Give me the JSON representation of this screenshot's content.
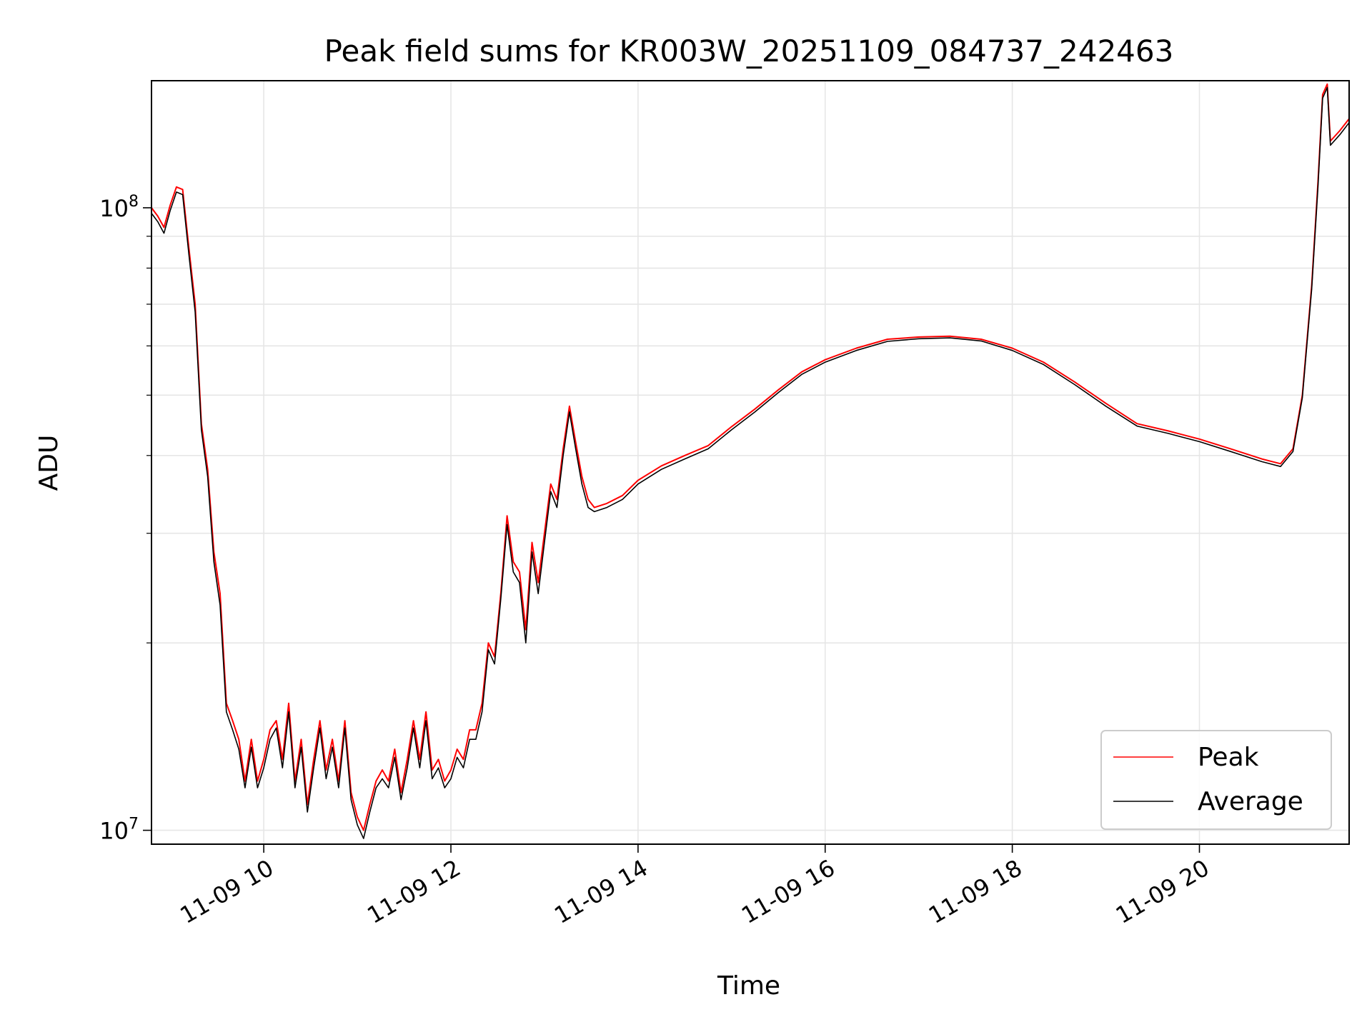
{
  "chart_data": {
    "type": "line",
    "title": "Peak field sums for KR003W_20251109_084737_242463",
    "xlabel": "Time",
    "ylabel": "ADU",
    "y_scale": "log",
    "grid": true,
    "legend_placement": "lower-right",
    "xlim": [
      "2025-11-09 08:48",
      "2025-11-09 21:36"
    ],
    "ylim": [
      9500000,
      160000000
    ],
    "x_ticks": [
      {
        "value": "2025-11-09 10:00",
        "label": "11-09 10"
      },
      {
        "value": "2025-11-09 12:00",
        "label": "11-09 12"
      },
      {
        "value": "2025-11-09 14:00",
        "label": "11-09 14"
      },
      {
        "value": "2025-11-09 16:00",
        "label": "11-09 16"
      },
      {
        "value": "2025-11-09 18:00",
        "label": "11-09 18"
      },
      {
        "value": "2025-11-09 20:00",
        "label": "11-09 20"
      }
    ],
    "y_major_ticks": [
      {
        "value": 10000000,
        "base": "10",
        "exp": "7"
      },
      {
        "value": 100000000,
        "base": "10",
        "exp": "8"
      }
    ],
    "y_minor_ticks": [
      20000000,
      30000000,
      40000000,
      50000000,
      60000000,
      70000000,
      80000000,
      90000000
    ],
    "series": [
      {
        "name": "Peak",
        "color": "#ff0000",
        "points": [
          [
            "2025-11-09 08:48",
            100000000
          ],
          [
            "2025-11-09 08:52",
            97000000
          ],
          [
            "2025-11-09 08:56",
            93000000
          ],
          [
            "2025-11-09 09:00",
            101000000
          ],
          [
            "2025-11-09 09:04",
            108000000
          ],
          [
            "2025-11-09 09:08",
            107000000
          ],
          [
            "2025-11-09 09:12",
            86000000
          ],
          [
            "2025-11-09 09:16",
            70000000
          ],
          [
            "2025-11-09 09:20",
            45000000
          ],
          [
            "2025-11-09 09:24",
            38000000
          ],
          [
            "2025-11-09 09:28",
            28000000
          ],
          [
            "2025-11-09 09:32",
            24000000
          ],
          [
            "2025-11-09 09:36",
            16000000
          ],
          [
            "2025-11-09 09:40",
            15000000
          ],
          [
            "2025-11-09 09:44",
            14000000
          ],
          [
            "2025-11-09 09:48",
            12000000
          ],
          [
            "2025-11-09 09:52",
            14000000
          ],
          [
            "2025-11-09 09:56",
            12000000
          ],
          [
            "2025-11-09 10:00",
            13000000
          ],
          [
            "2025-11-09 10:04",
            14500000
          ],
          [
            "2025-11-09 10:08",
            15000000
          ],
          [
            "2025-11-09 10:12",
            13000000
          ],
          [
            "2025-11-09 10:16",
            16000000
          ],
          [
            "2025-11-09 10:20",
            12000000
          ],
          [
            "2025-11-09 10:24",
            14000000
          ],
          [
            "2025-11-09 10:28",
            11000000
          ],
          [
            "2025-11-09 10:32",
            13000000
          ],
          [
            "2025-11-09 10:36",
            15000000
          ],
          [
            "2025-11-09 10:40",
            12500000
          ],
          [
            "2025-11-09 10:44",
            14000000
          ],
          [
            "2025-11-09 10:48",
            12000000
          ],
          [
            "2025-11-09 10:52",
            15000000
          ],
          [
            "2025-11-09 10:56",
            11500000
          ],
          [
            "2025-11-09 11:00",
            10500000
          ],
          [
            "2025-11-09 11:04",
            10000000
          ],
          [
            "2025-11-09 11:08",
            11000000
          ],
          [
            "2025-11-09 11:12",
            12000000
          ],
          [
            "2025-11-09 11:16",
            12500000
          ],
          [
            "2025-11-09 11:20",
            12000000
          ],
          [
            "2025-11-09 11:24",
            13500000
          ],
          [
            "2025-11-09 11:28",
            11500000
          ],
          [
            "2025-11-09 11:32",
            13000000
          ],
          [
            "2025-11-09 11:36",
            15000000
          ],
          [
            "2025-11-09 11:40",
            13000000
          ],
          [
            "2025-11-09 11:44",
            15500000
          ],
          [
            "2025-11-09 11:48",
            12500000
          ],
          [
            "2025-11-09 11:52",
            13000000
          ],
          [
            "2025-11-09 11:56",
            12000000
          ],
          [
            "2025-11-09 12:00",
            12500000
          ],
          [
            "2025-11-09 12:04",
            13500000
          ],
          [
            "2025-11-09 12:08",
            13000000
          ],
          [
            "2025-11-09 12:12",
            14500000
          ],
          [
            "2025-11-09 12:16",
            14500000
          ],
          [
            "2025-11-09 12:20",
            16000000
          ],
          [
            "2025-11-09 12:24",
            20000000
          ],
          [
            "2025-11-09 12:28",
            19000000
          ],
          [
            "2025-11-09 12:32",
            24000000
          ],
          [
            "2025-11-09 12:36",
            32000000
          ],
          [
            "2025-11-09 12:40",
            27000000
          ],
          [
            "2025-11-09 12:44",
            26000000
          ],
          [
            "2025-11-09 12:48",
            21000000
          ],
          [
            "2025-11-09 12:52",
            29000000
          ],
          [
            "2025-11-09 12:56",
            25000000
          ],
          [
            "2025-11-09 13:00",
            30000000
          ],
          [
            "2025-11-09 13:04",
            36000000
          ],
          [
            "2025-11-09 13:08",
            34000000
          ],
          [
            "2025-11-09 13:12",
            41000000
          ],
          [
            "2025-11-09 13:16",
            48000000
          ],
          [
            "2025-11-09 13:20",
            42000000
          ],
          [
            "2025-11-09 13:24",
            37000000
          ],
          [
            "2025-11-09 13:28",
            34000000
          ],
          [
            "2025-11-09 13:32",
            33000000
          ],
          [
            "2025-11-09 13:40",
            33500000
          ],
          [
            "2025-11-09 13:50",
            34500000
          ],
          [
            "2025-11-09 14:00",
            36500000
          ],
          [
            "2025-11-09 14:15",
            38500000
          ],
          [
            "2025-11-09 14:30",
            40000000
          ],
          [
            "2025-11-09 14:45",
            41500000
          ],
          [
            "2025-11-09 15:00",
            44500000
          ],
          [
            "2025-11-09 15:15",
            47500000
          ],
          [
            "2025-11-09 15:30",
            51000000
          ],
          [
            "2025-11-09 15:45",
            54500000
          ],
          [
            "2025-11-09 16:00",
            57000000
          ],
          [
            "2025-11-09 16:20",
            59500000
          ],
          [
            "2025-11-09 16:40",
            61500000
          ],
          [
            "2025-11-09 17:00",
            62000000
          ],
          [
            "2025-11-09 17:20",
            62200000
          ],
          [
            "2025-11-09 17:40",
            61500000
          ],
          [
            "2025-11-09 18:00",
            59500000
          ],
          [
            "2025-11-09 18:20",
            56500000
          ],
          [
            "2025-11-09 18:40",
            52500000
          ],
          [
            "2025-11-09 19:00",
            48500000
          ],
          [
            "2025-11-09 19:20",
            45000000
          ],
          [
            "2025-11-09 19:40",
            43800000
          ],
          [
            "2025-11-09 20:00",
            42500000
          ],
          [
            "2025-11-09 20:20",
            41000000
          ],
          [
            "2025-11-09 20:40",
            39500000
          ],
          [
            "2025-11-09 20:52",
            38800000
          ],
          [
            "2025-11-09 21:00",
            41000000
          ],
          [
            "2025-11-09 21:06",
            50000000
          ],
          [
            "2025-11-09 21:12",
            75000000
          ],
          [
            "2025-11-09 21:16",
            110000000
          ],
          [
            "2025-11-09 21:19",
            152000000
          ],
          [
            "2025-11-09 21:22",
            158000000
          ],
          [
            "2025-11-09 21:24",
            128000000
          ],
          [
            "2025-11-09 21:30",
            133000000
          ],
          [
            "2025-11-09 21:36",
            139000000
          ]
        ]
      },
      {
        "name": "Average",
        "color": "#000000",
        "points": [
          [
            "2025-11-09 08:48",
            98000000
          ],
          [
            "2025-11-09 08:52",
            95000000
          ],
          [
            "2025-11-09 08:56",
            91000000
          ],
          [
            "2025-11-09 09:00",
            99000000
          ],
          [
            "2025-11-09 09:04",
            106000000
          ],
          [
            "2025-11-09 09:08",
            105000000
          ],
          [
            "2025-11-09 09:12",
            84000000
          ],
          [
            "2025-11-09 09:16",
            68000000
          ],
          [
            "2025-11-09 09:20",
            44000000
          ],
          [
            "2025-11-09 09:24",
            37000000
          ],
          [
            "2025-11-09 09:28",
            27000000
          ],
          [
            "2025-11-09 09:32",
            23000000
          ],
          [
            "2025-11-09 09:36",
            15500000
          ],
          [
            "2025-11-09 09:40",
            14500000
          ],
          [
            "2025-11-09 09:44",
            13500000
          ],
          [
            "2025-11-09 09:48",
            11700000
          ],
          [
            "2025-11-09 09:52",
            13600000
          ],
          [
            "2025-11-09 09:56",
            11700000
          ],
          [
            "2025-11-09 10:00",
            12600000
          ],
          [
            "2025-11-09 10:04",
            14000000
          ],
          [
            "2025-11-09 10:08",
            14600000
          ],
          [
            "2025-11-09 10:12",
            12600000
          ],
          [
            "2025-11-09 10:16",
            15500000
          ],
          [
            "2025-11-09 10:20",
            11700000
          ],
          [
            "2025-11-09 10:24",
            13600000
          ],
          [
            "2025-11-09 10:28",
            10700000
          ],
          [
            "2025-11-09 10:32",
            12600000
          ],
          [
            "2025-11-09 10:36",
            14600000
          ],
          [
            "2025-11-09 10:40",
            12100000
          ],
          [
            "2025-11-09 10:44",
            13600000
          ],
          [
            "2025-11-09 10:48",
            11700000
          ],
          [
            "2025-11-09 10:52",
            14600000
          ],
          [
            "2025-11-09 10:56",
            11200000
          ],
          [
            "2025-11-09 11:00",
            10200000
          ],
          [
            "2025-11-09 11:04",
            9700000
          ],
          [
            "2025-11-09 11:08",
            10700000
          ],
          [
            "2025-11-09 11:12",
            11700000
          ],
          [
            "2025-11-09 11:16",
            12100000
          ],
          [
            "2025-11-09 11:20",
            11700000
          ],
          [
            "2025-11-09 11:24",
            13100000
          ],
          [
            "2025-11-09 11:28",
            11200000
          ],
          [
            "2025-11-09 11:32",
            12600000
          ],
          [
            "2025-11-09 11:36",
            14600000
          ],
          [
            "2025-11-09 11:40",
            12600000
          ],
          [
            "2025-11-09 11:44",
            15000000
          ],
          [
            "2025-11-09 11:48",
            12100000
          ],
          [
            "2025-11-09 11:52",
            12600000
          ],
          [
            "2025-11-09 11:56",
            11700000
          ],
          [
            "2025-11-09 12:00",
            12100000
          ],
          [
            "2025-11-09 12:04",
            13100000
          ],
          [
            "2025-11-09 12:08",
            12600000
          ],
          [
            "2025-11-09 12:12",
            14000000
          ],
          [
            "2025-11-09 12:16",
            14000000
          ],
          [
            "2025-11-09 12:20",
            15500000
          ],
          [
            "2025-11-09 12:24",
            19500000
          ],
          [
            "2025-11-09 12:28",
            18500000
          ],
          [
            "2025-11-09 12:32",
            23500000
          ],
          [
            "2025-11-09 12:36",
            31000000
          ],
          [
            "2025-11-09 12:40",
            26000000
          ],
          [
            "2025-11-09 12:44",
            25000000
          ],
          [
            "2025-11-09 12:48",
            20000000
          ],
          [
            "2025-11-09 12:52",
            28000000
          ],
          [
            "2025-11-09 12:56",
            24000000
          ],
          [
            "2025-11-09 13:00",
            29000000
          ],
          [
            "2025-11-09 13:04",
            35000000
          ],
          [
            "2025-11-09 13:08",
            33000000
          ],
          [
            "2025-11-09 13:12",
            40000000
          ],
          [
            "2025-11-09 13:16",
            47000000
          ],
          [
            "2025-11-09 13:20",
            41000000
          ],
          [
            "2025-11-09 13:24",
            36000000
          ],
          [
            "2025-11-09 13:28",
            33000000
          ],
          [
            "2025-11-09 13:32",
            32500000
          ],
          [
            "2025-11-09 13:40",
            33000000
          ],
          [
            "2025-11-09 13:50",
            34000000
          ],
          [
            "2025-11-09 14:00",
            36000000
          ],
          [
            "2025-11-09 14:15",
            38000000
          ],
          [
            "2025-11-09 14:30",
            39500000
          ],
          [
            "2025-11-09 14:45",
            41000000
          ],
          [
            "2025-11-09 15:00",
            44000000
          ],
          [
            "2025-11-09 15:15",
            47000000
          ],
          [
            "2025-11-09 15:30",
            50500000
          ],
          [
            "2025-11-09 15:45",
            54000000
          ],
          [
            "2025-11-09 16:00",
            56500000
          ],
          [
            "2025-11-09 16:20",
            59000000
          ],
          [
            "2025-11-09 16:40",
            61000000
          ],
          [
            "2025-11-09 17:00",
            61600000
          ],
          [
            "2025-11-09 17:20",
            61800000
          ],
          [
            "2025-11-09 17:40",
            61100000
          ],
          [
            "2025-11-09 18:00",
            59000000
          ],
          [
            "2025-11-09 18:20",
            56000000
          ],
          [
            "2025-11-09 18:40",
            52000000
          ],
          [
            "2025-11-09 19:00",
            48000000
          ],
          [
            "2025-11-09 19:20",
            44600000
          ],
          [
            "2025-11-09 19:40",
            43400000
          ],
          [
            "2025-11-09 20:00",
            42100000
          ],
          [
            "2025-11-09 20:20",
            40600000
          ],
          [
            "2025-11-09 20:40",
            39100000
          ],
          [
            "2025-11-09 20:52",
            38400000
          ],
          [
            "2025-11-09 21:00",
            40600000
          ],
          [
            "2025-11-09 21:06",
            49500000
          ],
          [
            "2025-11-09 21:12",
            74000000
          ],
          [
            "2025-11-09 21:16",
            108000000
          ],
          [
            "2025-11-09 21:19",
            150000000
          ],
          [
            "2025-11-09 21:22",
            156000000
          ],
          [
            "2025-11-09 21:24",
            126000000
          ],
          [
            "2025-11-09 21:30",
            131000000
          ],
          [
            "2025-11-09 21:36",
            137000000
          ]
        ]
      }
    ]
  }
}
